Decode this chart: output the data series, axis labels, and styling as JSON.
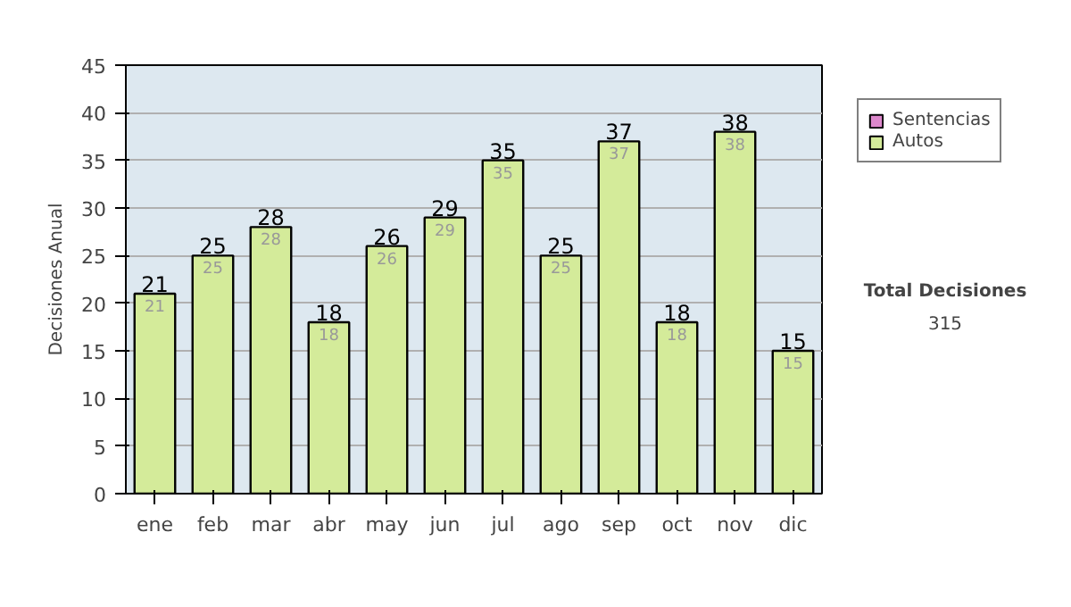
{
  "chart_data": {
    "type": "bar",
    "ylabel": "Decisiones Anual",
    "categories": [
      "ene",
      "feb",
      "mar",
      "abr",
      "may",
      "jun",
      "jul",
      "ago",
      "sep",
      "oct",
      "nov",
      "dic"
    ],
    "series": [
      {
        "name": "Autos",
        "color": "#d4eb9a",
        "values": [
          21,
          25,
          28,
          18,
          26,
          29,
          35,
          25,
          37,
          18,
          38,
          15
        ],
        "value_labels": [
          "21",
          "25",
          "28",
          "18",
          "26",
          "29",
          "35",
          "25",
          "37",
          "18",
          "38",
          "15"
        ]
      },
      {
        "name": "Sentencias",
        "color": "#dd88cc",
        "values": [
          null,
          null,
          null,
          null,
          null,
          null,
          null,
          null,
          null,
          null,
          null,
          null
        ]
      }
    ],
    "stacked": true,
    "totals": [
      "21",
      "25",
      "28",
      "18",
      "26",
      "29",
      "35",
      "25",
      "37",
      "18",
      "38",
      "15"
    ],
    "ylim": [
      0,
      45
    ],
    "yticks": [
      0,
      5,
      10,
      15,
      20,
      25,
      30,
      35,
      40,
      45
    ],
    "grid": "y",
    "legend": "right",
    "annotations": [
      "Total Decisiones",
      "315"
    ]
  }
}
